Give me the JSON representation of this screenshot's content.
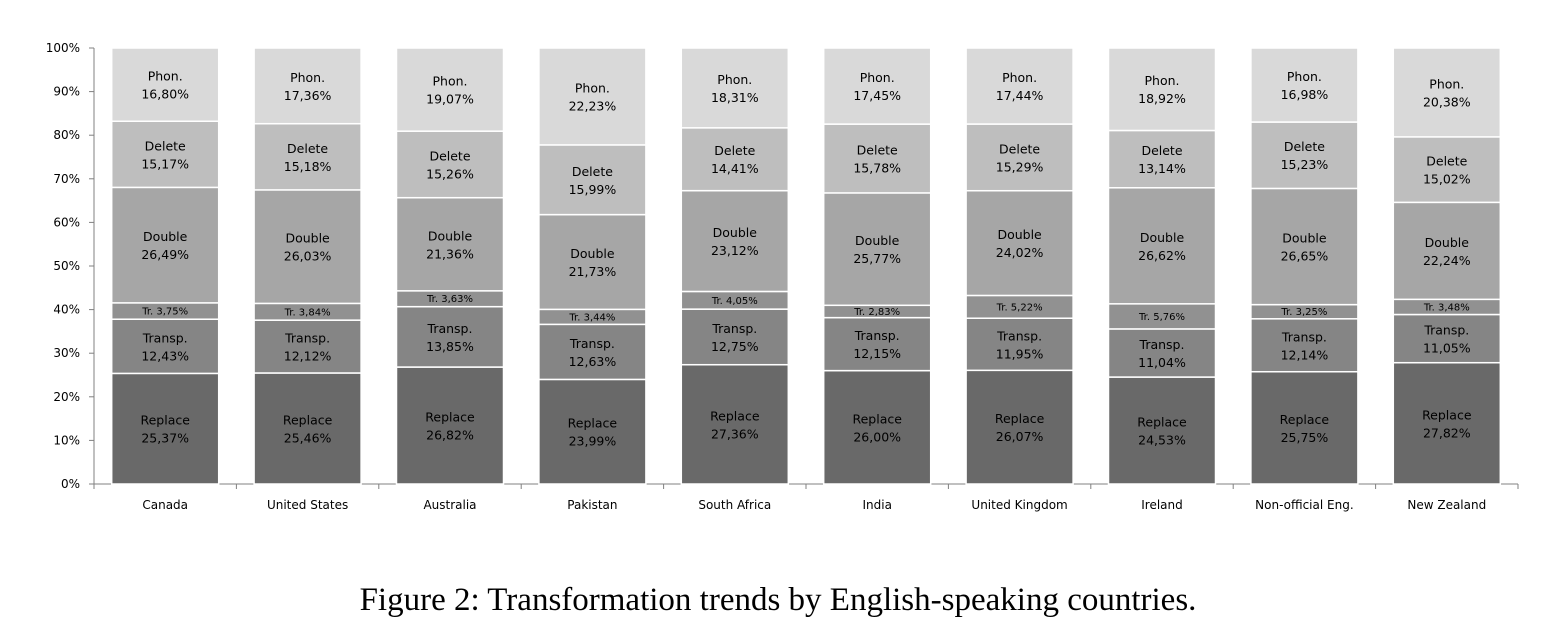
{
  "caption": "Figure 2: Transformation trends by English-speaking countries.",
  "chart_data": {
    "type": "bar",
    "stacked": true,
    "normalized": true,
    "title": "",
    "xlabel": "",
    "ylabel": "",
    "ylim": [
      0,
      100
    ],
    "y_ticks": [
      "0%",
      "10%",
      "20%",
      "30%",
      "40%",
      "50%",
      "60%",
      "70%",
      "80%",
      "90%",
      "100%"
    ],
    "grid": false,
    "legend": "none",
    "categories": [
      "Canada",
      "United States",
      "Australia",
      "Pakistan",
      "South Africa",
      "India",
      "United Kingdom",
      "Ireland",
      "Non-official Eng.",
      "New Zealand"
    ],
    "series": [
      {
        "name": "Replace",
        "color": "#696969",
        "values": [
          25.37,
          25.46,
          26.82,
          23.99,
          27.36,
          26.0,
          26.07,
          24.53,
          25.75,
          27.82
        ],
        "labels": [
          "25,37%",
          "25,46%",
          "26,82%",
          "23,99%",
          "27,36%",
          "26,00%",
          "26,07%",
          "24,53%",
          "25,75%",
          "27,82%"
        ]
      },
      {
        "name": "Transp.",
        "color": "#858585",
        "values": [
          12.43,
          12.12,
          13.85,
          12.63,
          12.75,
          12.15,
          11.95,
          11.04,
          12.14,
          11.05
        ],
        "labels": [
          "12,43%",
          "12,12%",
          "13,85%",
          "12,63%",
          "12,75%",
          "12,15%",
          "11,95%",
          "11,04%",
          "12,14%",
          "11,05%"
        ]
      },
      {
        "name": "Tr.",
        "color": "#919191",
        "values": [
          3.75,
          3.84,
          3.63,
          3.44,
          4.05,
          2.83,
          5.22,
          5.76,
          3.25,
          3.48
        ],
        "labels": [
          "3,75%",
          "3,84%",
          "3,63%",
          "3,44%",
          "4,05%",
          "2,83%",
          "5,22%",
          "5,76%",
          "3,25%",
          "3,48%"
        ]
      },
      {
        "name": "Double",
        "color": "#a6a6a6",
        "values": [
          26.49,
          26.03,
          21.36,
          21.73,
          23.12,
          25.77,
          24.02,
          26.62,
          26.65,
          22.24
        ],
        "labels": [
          "26,49%",
          "26,03%",
          "21,36%",
          "21,73%",
          "23,12%",
          "25,77%",
          "24,02%",
          "26,62%",
          "26,65%",
          "22,24%"
        ]
      },
      {
        "name": "Delete",
        "color": "#bebebe",
        "values": [
          15.17,
          15.18,
          15.26,
          15.99,
          14.41,
          15.78,
          15.29,
          13.14,
          15.23,
          15.02
        ],
        "labels": [
          "15,17%",
          "15,18%",
          "15,26%",
          "15,99%",
          "14,41%",
          "15,78%",
          "15,29%",
          "13,14%",
          "15,23%",
          "15,02%"
        ]
      },
      {
        "name": "Phon.",
        "color": "#d9d9d9",
        "values": [
          16.8,
          17.36,
          19.07,
          22.23,
          18.31,
          17.45,
          17.44,
          18.92,
          16.98,
          20.38
        ],
        "labels": [
          "16,80%",
          "17,36%",
          "19,07%",
          "22,23%",
          "18,31%",
          "17,45%",
          "17,44%",
          "18,92%",
          "16,98%",
          "20,38%"
        ]
      }
    ]
  }
}
